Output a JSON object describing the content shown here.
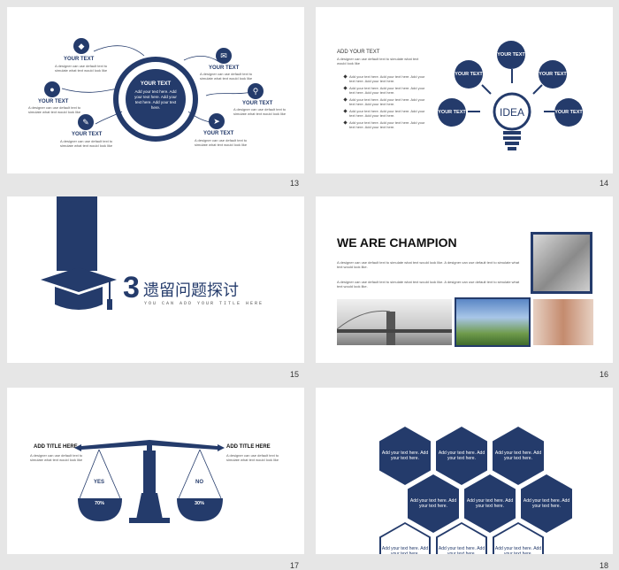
{
  "slides": {
    "s13": {
      "number": "13",
      "center_title": "YOUR TEXT",
      "center_body": "Add your text here. Add your text here. Add your text here. Add your text here.",
      "items": [
        {
          "title": "YOUR TEXT",
          "body": "A designer can use default text to simulate what text would look like",
          "icon": "diamond-icon"
        },
        {
          "title": "YOUR TEXT",
          "body": "A designer can use default text to simulate what text would look like",
          "icon": "chat-icon"
        },
        {
          "title": "YOUR TEXT",
          "body": "A designer can use default text to simulate what text would look like",
          "icon": "bulb-icon"
        },
        {
          "title": "YOUR TEXT",
          "body": "A designer can use default text to simulate what text would look like",
          "icon": "search-icon"
        },
        {
          "title": "YOUR TEXT",
          "body": "A designer can use default text to simulate what text would look like",
          "icon": "pencil-icon"
        },
        {
          "title": "YOUR TEXT",
          "body": "A designer can use default text to simulate what text would look like",
          "icon": "plane-icon"
        }
      ]
    },
    "s14": {
      "number": "14",
      "heading": "ADD YOUR TEXT",
      "intro": "A designer can use default text to simulate what text would look like",
      "bullets": [
        "Add your text here. Add your text here. Add your text here. Add your text here.",
        "Add your text here. Add your text here. Add your text here. Add your text here.",
        "Add your text here. Add your text here. Add your text here. Add your text here.",
        "Add your text here. Add your text here. Add your text here. Add your text here.",
        "Add your text here. Add your text here. Add your text here. Add your text here."
      ],
      "idea": "IDEA",
      "circles": [
        "YOUR TEXT",
        "YOUR TEXT",
        "YOUR TEXT",
        "YOUR TEXT",
        "YOUR TEXT"
      ]
    },
    "s15": {
      "number": "15",
      "section_number": "3",
      "section_title": "遗留问题探讨",
      "subtitle": "YOU CAN ADD YOUR TITLE HERE"
    },
    "s16": {
      "number": "16",
      "title": "WE ARE CHAMPION",
      "para1": "A designer can use default text to simulate what text would look like. A designer can use default text to simulate what text would look like.",
      "para2": "A designer can use default text to simulate what text would look like. A designer can use default text to simulate what text would look like."
    },
    "s17": {
      "number": "17",
      "left_title": "ADD TITLE HERE",
      "left_body": "A designer can use default text to simulate what text would look like",
      "right_title": "ADD TITLE HERE",
      "right_body": "A designer can use default text to simulate what text would look like",
      "yes": "YES",
      "no": "NO",
      "yes_pct": "70%",
      "no_pct": "30%"
    },
    "s18": {
      "number": "18",
      "hex_text": "Add your text here. Add your text here."
    }
  },
  "colors": {
    "navy": "#243b6b"
  }
}
